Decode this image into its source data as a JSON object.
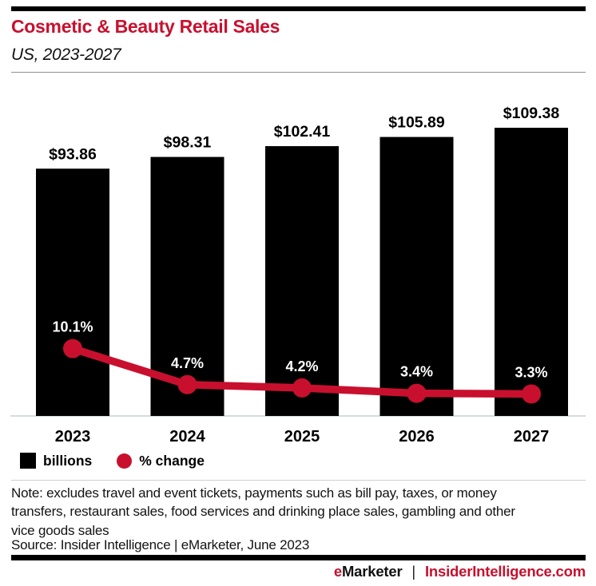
{
  "header": {
    "title": "Cosmetic & Beauty Retail Sales",
    "subtitle": "US, 2023-2027"
  },
  "chart_data": {
    "type": "combo_bar_line",
    "title": "Cosmetic & Beauty Retail Sales",
    "subtitle": "US, 2023-2027",
    "xlabel": "",
    "ylabel": "",
    "grid": false,
    "legend_position": "bottom",
    "categories": [
      "2023",
      "2024",
      "2025",
      "2026",
      "2027"
    ],
    "series": [
      {
        "name": "billions",
        "type": "bar",
        "color": "#000000",
        "values": [
          93.86,
          98.31,
          102.41,
          105.89,
          109.38
        ],
        "labels": [
          "$93.86",
          "$98.31",
          "$102.41",
          "$105.89",
          "$109.38"
        ],
        "label_color": "#000000"
      },
      {
        "name": "% change",
        "type": "line",
        "color": "#c8102e",
        "values": [
          10.1,
          4.7,
          4.2,
          3.4,
          3.3
        ],
        "labels": [
          "10.1%",
          "4.7%",
          "4.2%",
          "3.4%",
          "3.3%"
        ],
        "label_color": "#ffffff"
      }
    ]
  },
  "legend": {
    "items": [
      {
        "label": "billions",
        "swatch": "square",
        "color": "#000000"
      },
      {
        "label": "% change",
        "swatch": "circle",
        "color": "#c8102e"
      }
    ]
  },
  "note": {
    "lines": [
      "Note: excludes travel and event tickets, payments such as bill pay, taxes, or money",
      "transfers, restaurant sales, food services and drinking place sales, gambling and other",
      "vice goods sales"
    ]
  },
  "source": "Source: Insider Intelligence | eMarketer, June 2023",
  "footer": {
    "brand_prefix": "e",
    "brand": "Marketer",
    "separator": "|",
    "site": "InsiderIntelligence.com"
  },
  "colors": {
    "brand_red": "#c8102e",
    "bar_black": "#000000",
    "axis_line": "#c9cfd8",
    "rule_dark": "#8f8f8f",
    "rule_light": "#cfcfcf"
  }
}
